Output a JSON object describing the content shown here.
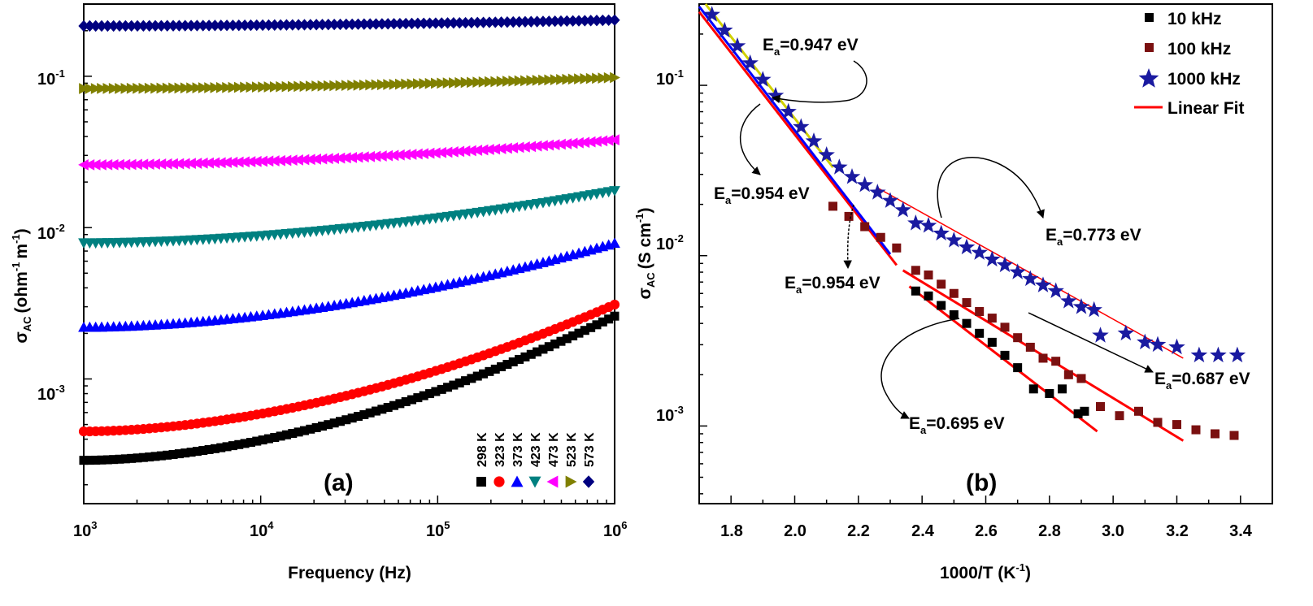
{
  "chart_data": [
    {
      "type": "scatter",
      "panel_label": "(a)",
      "xlabel": "Frequency (Hz)",
      "ylabel": {
        "main": "σ",
        "sub": "AC",
        "text": "(ohm",
        "sup1": "-1",
        "mid": "m",
        "sup2": "-1",
        "close": ")"
      },
      "xscale": "log",
      "yscale": "log",
      "xlim": [
        1000,
        1000000
      ],
      "ylim": [
        0.00015,
        0.3
      ],
      "x_ticks": [
        {
          "base": "10",
          "exp": "3",
          "value": 1000
        },
        {
          "base": "10",
          "exp": "4",
          "value": 10000
        },
        {
          "base": "10",
          "exp": "5",
          "value": 100000
        },
        {
          "base": "10",
          "exp": "6",
          "value": 1000000
        }
      ],
      "y_ticks": [
        {
          "base": "10",
          "exp": "-3",
          "value": 0.001
        },
        {
          "base": "10",
          "exp": "-2",
          "value": 0.01
        },
        {
          "base": "10",
          "exp": "-1",
          "value": 0.1
        }
      ],
      "legend_position": "bottom-right",
      "series": [
        {
          "name": "298 K",
          "marker": "square",
          "color": "#000000",
          "y_at_1e3": 0.00029,
          "y_at_1e6": 0.0026
        },
        {
          "name": "323 K",
          "marker": "circle",
          "color": "#ff0000",
          "y_at_1e3": 0.00045,
          "y_at_1e6": 0.0031
        },
        {
          "name": "373 K",
          "marker": "triangle-up",
          "color": "#0000ff",
          "y_at_1e3": 0.0022,
          "y_at_1e6": 0.0079
        },
        {
          "name": "423 K",
          "marker": "triangle-down",
          "color": "#008080",
          "y_at_1e3": 0.0079,
          "y_at_1e6": 0.0175
        },
        {
          "name": "473 K",
          "marker": "triangle-left",
          "color": "#ff00ff",
          "y_at_1e3": 0.026,
          "y_at_1e6": 0.038
        },
        {
          "name": "523 K",
          "marker": "triangle-right",
          "color": "#808000",
          "y_at_1e3": 0.083,
          "y_at_1e6": 0.098
        },
        {
          "name": "573 K",
          "marker": "diamond",
          "color": "#000080",
          "y_at_1e3": 0.215,
          "y_at_1e6": 0.235
        }
      ]
    },
    {
      "type": "scatter",
      "panel_label": "(b)",
      "xlabel": {
        "main": "1000/T (K",
        "sup": "-1",
        "close": ")"
      },
      "ylabel": {
        "main": "σ",
        "sub": "AC",
        "text": "(S cm",
        "sup": "-1",
        "close": ")"
      },
      "yscale": "log",
      "xlim": [
        1.7,
        3.5
      ],
      "ylim": [
        0.00035,
        0.3
      ],
      "x_ticks": [
        "1.8",
        "2.0",
        "2.2",
        "2.4",
        "2.6",
        "2.8",
        "3.0",
        "3.2",
        "3.4"
      ],
      "y_ticks": [
        {
          "base": "10",
          "exp": "-3",
          "value": 0.001
        },
        {
          "base": "10",
          "exp": "-2",
          "value": 0.01
        },
        {
          "base": "10",
          "exp": "-1",
          "value": 0.1
        }
      ],
      "legend_position": "top-right",
      "legend": [
        {
          "label": "10 kHz",
          "marker": "square",
          "color": "#000000"
        },
        {
          "label": "100 kHz",
          "marker": "square",
          "color": "#7a1010"
        },
        {
          "label": "1000 kHz",
          "marker": "star",
          "color": "#1a1aa0"
        },
        {
          "label": "Linear Fit",
          "marker": "line",
          "color": "#ff0000"
        }
      ],
      "series": [
        {
          "name": "10 kHz",
          "marker": "square",
          "color": "#000000",
          "x": [
            2.38,
            2.42,
            2.46,
            2.5,
            2.54,
            2.58,
            2.62,
            2.66,
            2.7,
            2.75,
            2.8,
            2.84,
            2.89,
            2.91
          ],
          "y": [
            0.0062,
            0.0058,
            0.0051,
            0.0045,
            0.004,
            0.0035,
            0.0031,
            0.0026,
            0.0022,
            0.00165,
            0.00155,
            0.00165,
            0.00118,
            0.00122
          ]
        },
        {
          "name": "100 kHz",
          "marker": "square",
          "color": "#7a1010",
          "x": [
            2.12,
            2.17,
            2.22,
            2.27,
            2.32,
            2.38,
            2.42,
            2.46,
            2.5,
            2.54,
            2.58,
            2.62,
            2.66,
            2.7,
            2.74,
            2.78,
            2.82,
            2.86,
            2.9,
            2.96,
            3.02,
            3.08,
            3.14,
            3.2,
            3.26,
            3.32,
            3.38
          ],
          "y": [
            0.0195,
            0.017,
            0.0148,
            0.0128,
            0.0111,
            0.0082,
            0.0077,
            0.0068,
            0.006,
            0.0053,
            0.0047,
            0.0043,
            0.0038,
            0.0033,
            0.0029,
            0.0025,
            0.0024,
            0.002,
            0.0019,
            0.0013,
            0.00115,
            0.00122,
            0.00105,
            0.00102,
            0.00095,
            0.0009,
            0.00088
          ]
        },
        {
          "name": "1000 kHz",
          "marker": "star",
          "color": "#1a1aa0",
          "x": [
            1.74,
            1.78,
            1.82,
            1.86,
            1.9,
            1.94,
            1.98,
            2.02,
            2.06,
            2.1,
            2.14,
            2.18,
            2.22,
            2.26,
            2.3,
            2.34,
            2.38,
            2.42,
            2.46,
            2.5,
            2.54,
            2.58,
            2.62,
            2.66,
            2.7,
            2.74,
            2.78,
            2.82,
            2.86,
            2.9,
            2.94,
            2.96,
            3.04,
            3.1,
            3.14,
            3.2,
            3.27,
            3.33,
            3.39
          ],
          "y": [
            0.26,
            0.21,
            0.17,
            0.135,
            0.108,
            0.087,
            0.07,
            0.057,
            0.047,
            0.039,
            0.033,
            0.029,
            0.026,
            0.0235,
            0.021,
            0.0185,
            0.0155,
            0.015,
            0.0135,
            0.0123,
            0.0112,
            0.0104,
            0.0095,
            0.0088,
            0.008,
            0.0073,
            0.0067,
            0.0062,
            0.0054,
            0.005,
            0.0048,
            0.0034,
            0.0035,
            0.0031,
            0.003,
            0.0029,
            0.0026,
            0.0026,
            0.0026
          ]
        }
      ],
      "fits": [
        {
          "color": "#ff0000",
          "x": [
            1.7,
            2.32
          ],
          "y": [
            0.27,
            0.0088
          ]
        },
        {
          "color": "#0000ff",
          "x": [
            1.7,
            2.3
          ],
          "y": [
            0.29,
            0.0102
          ]
        },
        {
          "color": "#d0d000",
          "x": [
            1.72,
            2.12
          ],
          "y": [
            0.3,
            0.033
          ]
        },
        {
          "color": "#ff0000",
          "x": [
            2.36,
            2.95
          ],
          "y": [
            0.0066,
            0.00093
          ]
        },
        {
          "color": "#ff0000",
          "x": [
            2.34,
            3.22
          ],
          "y": [
            0.0082,
            0.00082
          ]
        },
        {
          "color": "#ff0000",
          "x": [
            2.26,
            3.22
          ],
          "y": [
            0.025,
            0.0025
          ]
        }
      ],
      "annotations": [
        {
          "ea": "E",
          "sub": "a",
          "value": "=0.947 eV"
        },
        {
          "ea": "E",
          "sub": "a",
          "value": "=0.954 eV"
        },
        {
          "ea": "E",
          "sub": "a",
          "value": "=0.954 eV"
        },
        {
          "ea": "E",
          "sub": "a",
          "value": "=0.773 eV"
        },
        {
          "ea": "E",
          "sub": "a",
          "value": "=0.687 eV"
        },
        {
          "ea": "E",
          "sub": "a",
          "value": "=0.695 eV"
        }
      ]
    }
  ]
}
